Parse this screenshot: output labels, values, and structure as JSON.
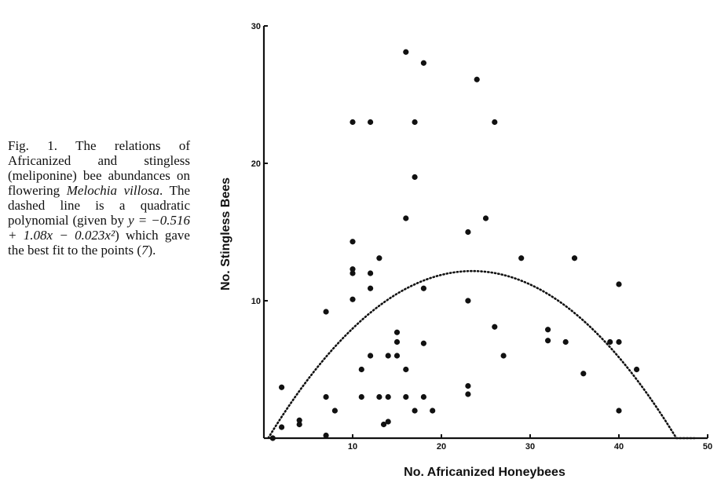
{
  "caption": {
    "fig_label": "Fig. 1.",
    "text_1": " The relations of Africanized and stingless (meliponine) bee abundances on flowering ",
    "species": "Melochia villosa",
    "text_2": ". The dashed line is a quadratic polynomial (given by ",
    "equation": "y = −0.516 + 1.08x − 0.023x²",
    "text_3": ") which gave the best fit to the points (",
    "ref": "7",
    "text_4": ")."
  },
  "chart_data": {
    "type": "scatter",
    "title": "",
    "xlabel": "No. Africanized Honeybees",
    "ylabel": "No. Stingless Bees",
    "xlim": [
      0,
      50
    ],
    "ylim": [
      0,
      30
    ],
    "xticks": [
      "10",
      "20",
      "30",
      "40",
      "50"
    ],
    "yticks": [
      "10",
      "20",
      "30"
    ],
    "grid": false,
    "points": [
      {
        "x": 1,
        "y": 0
      },
      {
        "x": 2,
        "y": 0.8
      },
      {
        "x": 2,
        "y": 3.7
      },
      {
        "x": 4,
        "y": 1
      },
      {
        "x": 4,
        "y": 1.3
      },
      {
        "x": 7,
        "y": 0.2
      },
      {
        "x": 7,
        "y": 3
      },
      {
        "x": 7,
        "y": 9.2
      },
      {
        "x": 8,
        "y": 2
      },
      {
        "x": 10,
        "y": 10.1
      },
      {
        "x": 10,
        "y": 12
      },
      {
        "x": 10,
        "y": 12.3
      },
      {
        "x": 10,
        "y": 14.3
      },
      {
        "x": 10,
        "y": 23
      },
      {
        "x": 11,
        "y": 3
      },
      {
        "x": 11,
        "y": 5
      },
      {
        "x": 12,
        "y": 6
      },
      {
        "x": 12,
        "y": 10.9
      },
      {
        "x": 12,
        "y": 12
      },
      {
        "x": 12,
        "y": 23
      },
      {
        "x": 13,
        "y": 3
      },
      {
        "x": 13,
        "y": 13.1
      },
      {
        "x": 13.5,
        "y": 1
      },
      {
        "x": 14,
        "y": 3
      },
      {
        "x": 14,
        "y": 6
      },
      {
        "x": 14,
        "y": 1.2
      },
      {
        "x": 15,
        "y": 6
      },
      {
        "x": 15,
        "y": 7
      },
      {
        "x": 15,
        "y": 7.7
      },
      {
        "x": 16,
        "y": 3
      },
      {
        "x": 16,
        "y": 5
      },
      {
        "x": 16,
        "y": 16
      },
      {
        "x": 16,
        "y": 28.1
      },
      {
        "x": 17,
        "y": 2
      },
      {
        "x": 17,
        "y": 23
      },
      {
        "x": 17,
        "y": 19
      },
      {
        "x": 18,
        "y": 3
      },
      {
        "x": 18,
        "y": 6.9
      },
      {
        "x": 18,
        "y": 10.9
      },
      {
        "x": 18,
        "y": 27.3
      },
      {
        "x": 19,
        "y": 2
      },
      {
        "x": 23,
        "y": 3.2
      },
      {
        "x": 23,
        "y": 3.8
      },
      {
        "x": 23,
        "y": 10
      },
      {
        "x": 23,
        "y": 15
      },
      {
        "x": 24,
        "y": 26.1
      },
      {
        "x": 25,
        "y": 16
      },
      {
        "x": 26,
        "y": 8.1
      },
      {
        "x": 26,
        "y": 23
      },
      {
        "x": 27,
        "y": 6
      },
      {
        "x": 29,
        "y": 13.1
      },
      {
        "x": 32,
        "y": 7.1
      },
      {
        "x": 32,
        "y": 7.9
      },
      {
        "x": 34,
        "y": 7
      },
      {
        "x": 35,
        "y": 13.1
      },
      {
        "x": 36,
        "y": 4.7
      },
      {
        "x": 39,
        "y": 7
      },
      {
        "x": 40,
        "y": 2
      },
      {
        "x": 40,
        "y": 7
      },
      {
        "x": 40,
        "y": 11.2
      },
      {
        "x": 42,
        "y": 5
      }
    ],
    "fit": {
      "type": "quadratic",
      "line_style": "dashed",
      "coefficients": {
        "c0": -0.516,
        "c1": 1.08,
        "c2": -0.023
      },
      "x_range": [
        0.5,
        48.5
      ]
    }
  }
}
